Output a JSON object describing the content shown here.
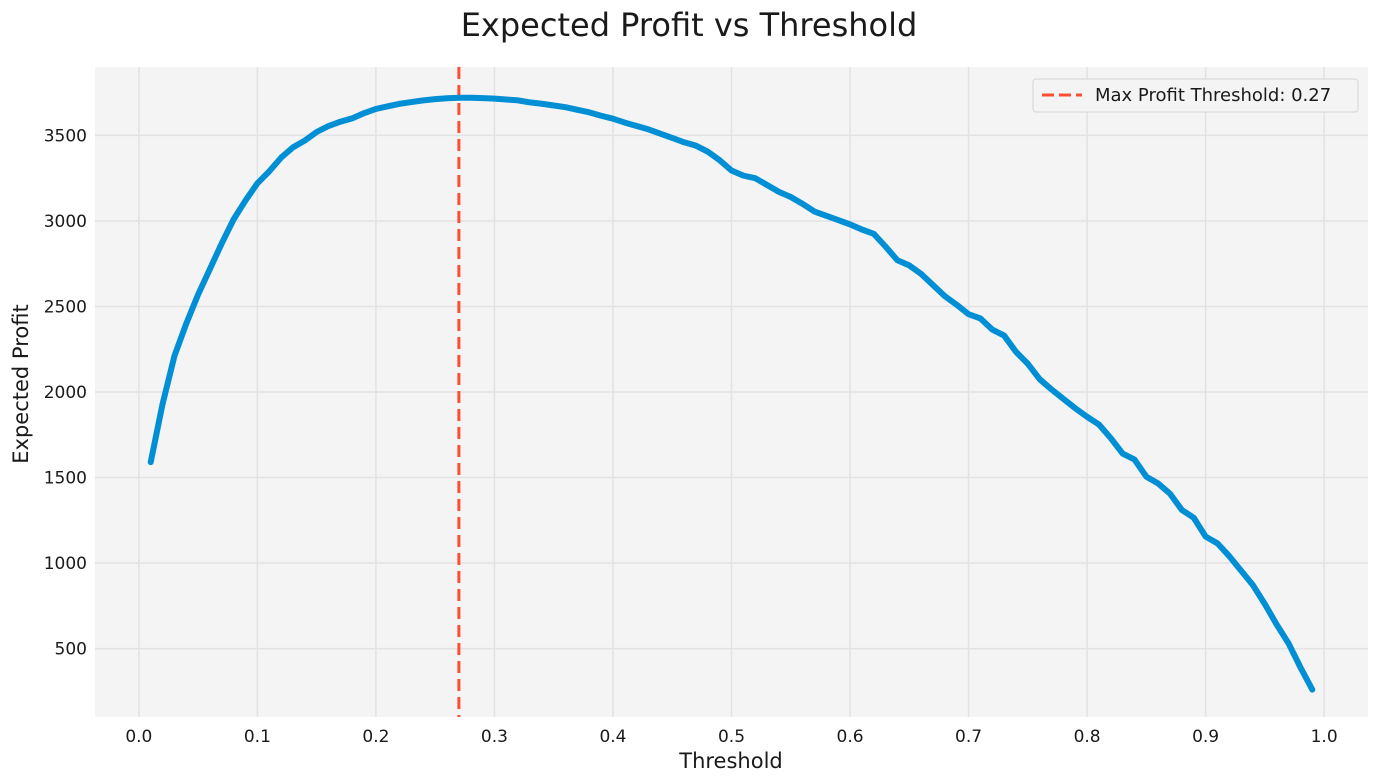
{
  "chart_data": {
    "type": "line",
    "title": "Expected Profit vs Threshold",
    "xlabel": "Threshold",
    "ylabel": "Expected Profit",
    "xlim": [
      -0.037,
      1.037
    ],
    "ylim": [
      100,
      3900
    ],
    "xticks": [
      0.0,
      0.1,
      0.2,
      0.3,
      0.4,
      0.5,
      0.6,
      0.7,
      0.8,
      0.9,
      1.0
    ],
    "xtick_labels": [
      "0.0",
      "0.1",
      "0.2",
      "0.3",
      "0.4",
      "0.5",
      "0.6",
      "0.7",
      "0.8",
      "0.9",
      "1.0"
    ],
    "yticks": [
      500,
      1000,
      1500,
      2000,
      2500,
      3000,
      3500
    ],
    "ytick_labels": [
      "500",
      "1000",
      "1500",
      "2000",
      "2500",
      "3000",
      "3500"
    ],
    "grid": true,
    "legend_position": "top-right",
    "colors": {
      "line": "#008fd5",
      "threshold": "#fc4f30",
      "plot_bg": "#f4f4f4",
      "grid": "#e2e2e2"
    },
    "series": [
      {
        "x": [
          0.01,
          0.02,
          0.03,
          0.04,
          0.05,
          0.06,
          0.07,
          0.08,
          0.09,
          0.1,
          0.11,
          0.12,
          0.13,
          0.14,
          0.15,
          0.16,
          0.17,
          0.18,
          0.19,
          0.2,
          0.21,
          0.22,
          0.23,
          0.24,
          0.25,
          0.26,
          0.27,
          0.28,
          0.29,
          0.3,
          0.31,
          0.32,
          0.33,
          0.34,
          0.35,
          0.36,
          0.37,
          0.38,
          0.39,
          0.4,
          0.41,
          0.42,
          0.43,
          0.44,
          0.45,
          0.46,
          0.47,
          0.48,
          0.49,
          0.5,
          0.51,
          0.52,
          0.53,
          0.54,
          0.55,
          0.56,
          0.57,
          0.58,
          0.59,
          0.6,
          0.61,
          0.62,
          0.63,
          0.64,
          0.65,
          0.66,
          0.67,
          0.68,
          0.69,
          0.7,
          0.71,
          0.72,
          0.73,
          0.74,
          0.75,
          0.76,
          0.77,
          0.78,
          0.79,
          0.8,
          0.81,
          0.82,
          0.83,
          0.84,
          0.85,
          0.86,
          0.87,
          0.88,
          0.89,
          0.9,
          0.91,
          0.92,
          0.93,
          0.94,
          0.95,
          0.96,
          0.97,
          0.98,
          0.99
        ],
        "values": [
          1590,
          1930,
          2210,
          2400,
          2570,
          2720,
          2870,
          3010,
          3120,
          3220,
          3290,
          3370,
          3430,
          3470,
          3520,
          3555,
          3580,
          3600,
          3630,
          3655,
          3670,
          3685,
          3695,
          3705,
          3712,
          3717,
          3720,
          3720,
          3718,
          3715,
          3710,
          3705,
          3693,
          3685,
          3675,
          3665,
          3650,
          3635,
          3615,
          3598,
          3575,
          3555,
          3535,
          3510,
          3485,
          3460,
          3440,
          3405,
          3355,
          3295,
          3265,
          3250,
          3210,
          3170,
          3140,
          3100,
          3055,
          3030,
          3005,
          2980,
          2950,
          2925,
          2850,
          2770,
          2740,
          2690,
          2625,
          2560,
          2510,
          2455,
          2430,
          2365,
          2330,
          2235,
          2165,
          2075,
          2015,
          1960,
          1905,
          1855,
          1810,
          1730,
          1640,
          1605,
          1505,
          1465,
          1405,
          1310,
          1265,
          1155,
          1115,
          1040,
          955,
          870,
          760,
          640,
          530,
          390,
          260
        ]
      }
    ],
    "threshold_line": {
      "x": 0.27,
      "label": "Max Profit Threshold: 0.27"
    }
  }
}
